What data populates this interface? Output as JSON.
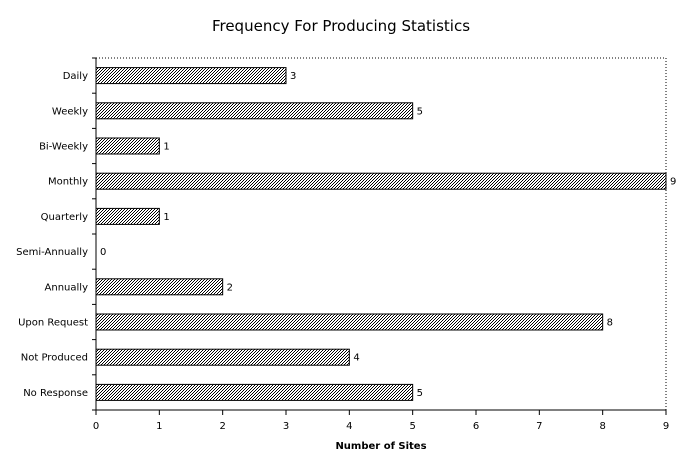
{
  "chart_data": {
    "type": "bar",
    "orientation": "horizontal",
    "title": "Frequency For Producing Statistics",
    "xlabel": "Number of Sites",
    "ylabel": "",
    "categories": [
      "Daily",
      "Weekly",
      "Bi-Weekly",
      "Monthly",
      "Quarterly",
      "Semi-Annually",
      "Annually",
      "Upon Request",
      "Not Produced",
      "No Response"
    ],
    "values": [
      3,
      5,
      1,
      9,
      1,
      0,
      2,
      8,
      4,
      5
    ],
    "xlim": [
      0,
      9
    ],
    "xticks": [
      "0",
      "1",
      "2",
      "3",
      "4",
      "5",
      "6",
      "7",
      "8",
      "9"
    ],
    "data_labels": [
      "3",
      "5",
      "1",
      "9",
      "1",
      "0",
      "2",
      "8",
      "4",
      "5"
    ],
    "grid": false,
    "legend": "none",
    "bar_fill": "#8a8a8a"
  }
}
